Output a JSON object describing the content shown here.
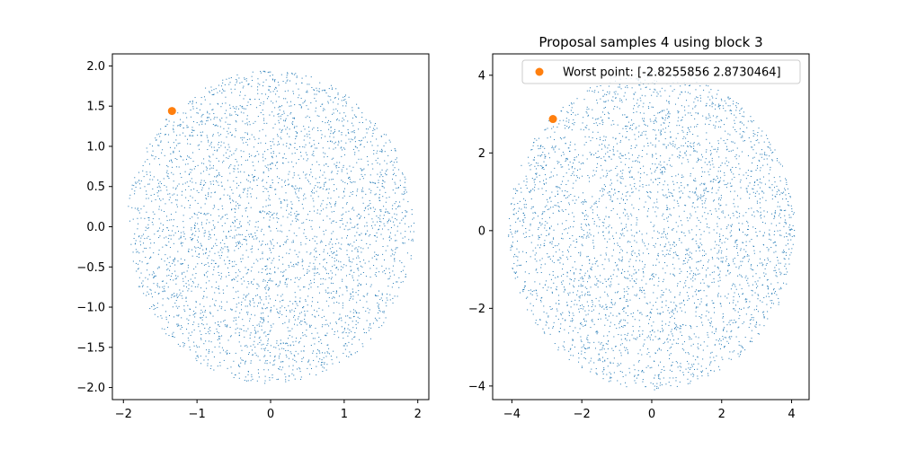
{
  "chart_data": [
    {
      "type": "scatter",
      "title": "",
      "xlabel": "",
      "ylabel": "",
      "xlim": [
        -2.15,
        2.15
      ],
      "ylim": [
        -2.15,
        2.15
      ],
      "xticks": [
        -2,
        -1,
        0,
        1,
        2
      ],
      "xtick_labels": [
        "−2",
        "−1",
        "0",
        "1",
        "2"
      ],
      "yticks": [
        -2.0,
        -1.5,
        -1.0,
        -0.5,
        0.0,
        0.5,
        1.0,
        1.5,
        2.0
      ],
      "ytick_labels": [
        "−2.0",
        "−1.5",
        "−1.0",
        "−0.5",
        "0.0",
        "0.5",
        "1.0",
        "1.5",
        "2.0"
      ],
      "grid": false,
      "series": [
        {
          "kind": "uniform-disk",
          "center": [
            0,
            0
          ],
          "radius": 1.95,
          "count": 3500,
          "color": "#1f77b4"
        },
        {
          "kind": "point",
          "x": -1.34,
          "y": 1.44,
          "color": "#ff7f0e"
        }
      ]
    },
    {
      "type": "scatter",
      "title": "Proposal samples 4 using block 3",
      "xlabel": "",
      "ylabel": "",
      "xlim": [
        -4.55,
        4.5
      ],
      "ylim": [
        -4.35,
        4.55
      ],
      "xticks": [
        -4,
        -2,
        0,
        2,
        4
      ],
      "xtick_labels": [
        "−4",
        "−2",
        "0",
        "2",
        "4"
      ],
      "yticks": [
        -4,
        -2,
        0,
        2,
        4
      ],
      "ytick_labels": [
        "−4",
        "−2",
        "0",
        "2",
        "4"
      ],
      "grid": false,
      "legend_position": "top-right",
      "series": [
        {
          "kind": "uniform-disk",
          "center": [
            0,
            0
          ],
          "radius": 4.1,
          "count": 3500,
          "color": "#1f77b4"
        },
        {
          "kind": "point",
          "name": "Worst point: [-2.8255856  2.8730464]",
          "x": -2.8255856,
          "y": 2.8730464,
          "color": "#ff7f0e"
        }
      ]
    }
  ]
}
